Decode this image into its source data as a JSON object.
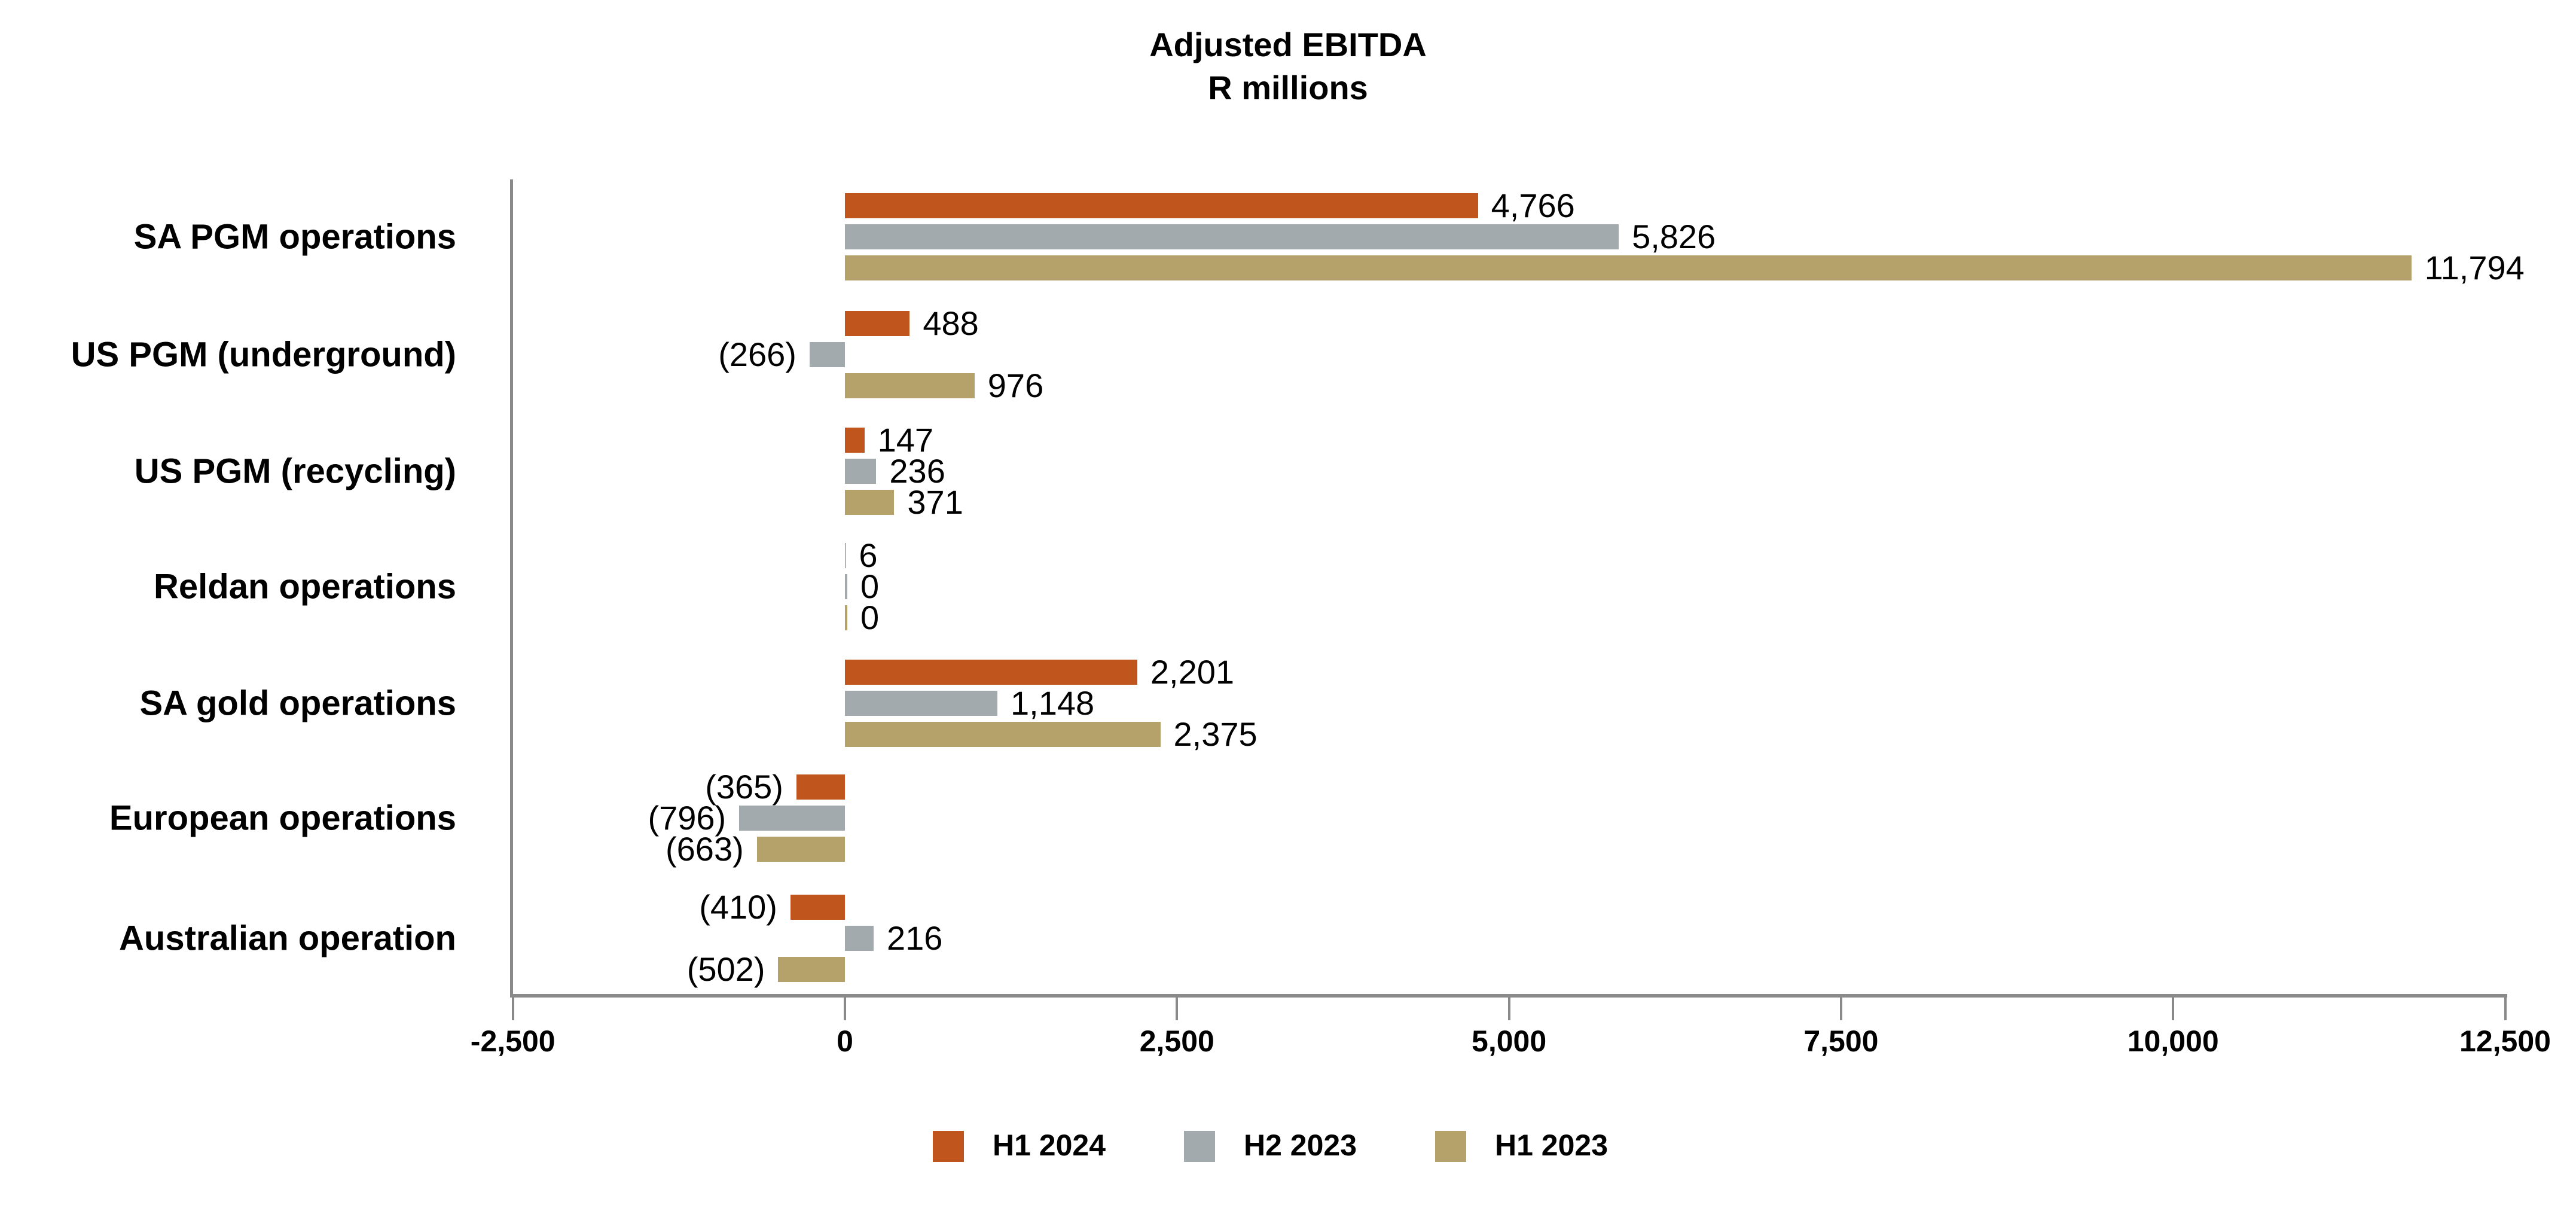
{
  "title": {
    "line1": "Adjusted EBITDA",
    "line2": "R millions"
  },
  "colors": {
    "H1 2024": "#C0561E",
    "H2 2023": "#A3AAAD",
    "H1 2023": "#B5A26A",
    "axis": "#8A8A8A"
  },
  "legend": [
    {
      "label": "H1 2024",
      "color": "#C0561E"
    },
    {
      "label": "H2 2023",
      "color": "#A3AAAD"
    },
    {
      "label": "H1 2023",
      "color": "#B5A26A"
    }
  ],
  "x_ticks": [
    "-2,500",
    "0",
    "2,500",
    "5,000",
    "7,500",
    "10,000",
    "12,500"
  ],
  "categories": [
    {
      "label": "SA PGM operations",
      "values": [
        "4,766",
        "5,826",
        "11,794"
      ]
    },
    {
      "label": "US PGM (underground)",
      "values": [
        "488",
        "(266)",
        "976"
      ]
    },
    {
      "label": "US PGM (recycling)",
      "values": [
        "147",
        "236",
        "371"
      ]
    },
    {
      "label": "Reldan operations",
      "values": [
        "6",
        "0",
        "0"
      ]
    },
    {
      "label": "SA gold operations",
      "values": [
        "2,201",
        "1,148",
        "2,375"
      ]
    },
    {
      "label": "European operations",
      "values": [
        "(365)",
        "(796)",
        "(663)"
      ]
    },
    {
      "label": "Australian operation",
      "values": [
        "(410)",
        "216",
        "(502)"
      ]
    }
  ],
  "chart_data": {
    "type": "bar",
    "orientation": "horizontal",
    "title": "Adjusted EBITDA",
    "subtitle": "R millions",
    "xlabel": "",
    "ylabel": "",
    "categories": [
      "SA PGM operations",
      "US PGM (underground)",
      "US PGM (recycling)",
      "Reldan operations",
      "SA gold operations",
      "European operations",
      "Australian operation"
    ],
    "series": [
      {
        "name": "H1 2024",
        "color": "#C0561E",
        "values": [
          4766,
          488,
          147,
          6,
          2201,
          -365,
          -410
        ]
      },
      {
        "name": "H2 2023",
        "color": "#A3AAAD",
        "values": [
          5826,
          -266,
          236,
          0,
          1148,
          -796,
          216
        ]
      },
      {
        "name": "H1 2023",
        "color": "#B5A26A",
        "values": [
          11794,
          976,
          371,
          0,
          2375,
          -663,
          -502
        ]
      }
    ],
    "xlim": [
      -2500,
      12500
    ],
    "x_ticks": [
      -2500,
      0,
      2500,
      5000,
      7500,
      10000,
      12500
    ],
    "grid": false,
    "legend_position": "bottom",
    "negative_format": "parentheses"
  }
}
